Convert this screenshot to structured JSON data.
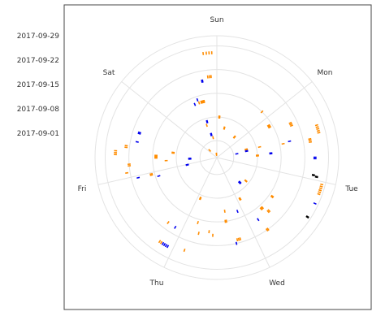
{
  "chart_data": {
    "type": "polar-segments",
    "title": "",
    "xlabel": "",
    "ylabel": "",
    "theta_labels": [
      "Sun",
      "Mon",
      "Tue",
      "Wed",
      "Thu",
      "Fri",
      "Sat"
    ],
    "radial_tick_labels": [
      "2017-09-01",
      "2017-09-08",
      "2017-09-15",
      "2017-09-22",
      "2017-09-29"
    ],
    "radial_range": [
      "2017-08-27",
      "2017-10-02"
    ],
    "grid": true,
    "legend": "none",
    "colors": {
      "orange": "#ff8c00",
      "blue": "#0000ee",
      "black": "#000000",
      "grid": "#e3e3e3",
      "panel_border": "#444444"
    },
    "marks": [
      {
        "day": "Sat",
        "date": "2017-09-27",
        "hour": 20.5,
        "color": "orange"
      },
      {
        "day": "Sat",
        "date": "2017-09-27",
        "hour": 21.3,
        "color": "orange"
      },
      {
        "day": "Sat",
        "date": "2017-09-27",
        "hour": 22.0,
        "color": "orange"
      },
      {
        "day": "Sat",
        "date": "2017-09-27",
        "hour": 22.7,
        "color": "orange"
      },
      {
        "day": "Sat",
        "date": "2017-09-20",
        "hour": 21.0,
        "color": "orange"
      },
      {
        "day": "Sat",
        "date": "2017-09-20",
        "hour": 21.6,
        "color": "orange"
      },
      {
        "day": "Sat",
        "date": "2017-09-20",
        "hour": 22.1,
        "color": "orange"
      },
      {
        "day": "Sat",
        "date": "2017-09-19",
        "hour": 18.8,
        "color": "blue"
      },
      {
        "day": "Sat",
        "date": "2017-09-19",
        "hour": 19.1,
        "color": "blue"
      },
      {
        "day": "Sat",
        "date": "2017-09-13",
        "hour": 13.5,
        "color": "blue"
      },
      {
        "day": "Sat",
        "date": "2017-09-13",
        "hour": 16.6,
        "color": "orange"
      },
      {
        "day": "Sat",
        "date": "2017-09-13",
        "hour": 17.0,
        "color": "orange"
      },
      {
        "day": "Sat",
        "date": "2017-09-13",
        "hour": 17.4,
        "color": "orange"
      },
      {
        "day": "Sat",
        "date": "2017-09-13",
        "hour": 17.8,
        "color": "orange"
      },
      {
        "day": "Sat",
        "date": "2017-09-13",
        "hour": 18.1,
        "color": "orange"
      },
      {
        "day": "Sat",
        "date": "2017-09-13",
        "hour": 15.6,
        "color": "orange"
      },
      {
        "day": "Sat",
        "date": "2017-09-14",
        "hour": 15.3,
        "color": "blue"
      },
      {
        "day": "Sat",
        "date": "2017-09-07",
        "hour": 16.7,
        "color": "blue"
      },
      {
        "day": "Sat",
        "date": "2017-09-07",
        "hour": 17.1,
        "color": "blue"
      },
      {
        "day": "Sat",
        "date": "2017-09-03",
        "hour": 17.2,
        "color": "blue"
      },
      {
        "day": "Sat",
        "date": "2017-09-03",
        "hour": 17.6,
        "color": "blue"
      },
      {
        "day": "Sat",
        "date": "2017-09-03",
        "hour": 18.0,
        "color": "blue"
      },
      {
        "day": "Sat",
        "date": "2017-09-06",
        "hour": 15.9,
        "color": "orange"
      },
      {
        "day": "Sat",
        "date": "2017-09-02",
        "hour": 19.0,
        "color": "orange"
      },
      {
        "day": "Sat",
        "date": "2017-08-30",
        "hour": 3.0,
        "color": "orange"
      },
      {
        "day": "Sat",
        "date": "2017-08-28",
        "hour": 20.8,
        "color": "orange"
      },
      {
        "day": "Sat",
        "date": "2017-08-28",
        "hour": 21.3,
        "color": "orange"
      },
      {
        "day": "Sun",
        "date": "2017-09-04",
        "hour": 18.7,
        "color": "orange"
      },
      {
        "day": "Sun",
        "date": "2017-09-04",
        "hour": 19.2,
        "color": "orange"
      },
      {
        "day": "Sun",
        "date": "2017-09-05",
        "hour": 6.4,
        "color": "orange"
      },
      {
        "day": "Sun",
        "date": "2017-09-05",
        "hour": 6.8,
        "color": "orange"
      },
      {
        "day": "Sun",
        "date": "2017-09-08",
        "hour": 1.4,
        "color": "orange"
      },
      {
        "day": "Sun",
        "date": "2017-09-08",
        "hour": 1.9,
        "color": "orange"
      },
      {
        "day": "Sun",
        "date": "2017-09-15",
        "hour": 20.8,
        "color": "orange"
      },
      {
        "day": "Mon",
        "date": "2017-09-24",
        "hour": 12.7,
        "color": "orange"
      },
      {
        "day": "Mon",
        "date": "2017-09-24",
        "hour": 13.1,
        "color": "orange"
      },
      {
        "day": "Mon",
        "date": "2017-09-24",
        "hour": 13.6,
        "color": "orange"
      },
      {
        "day": "Mon",
        "date": "2017-09-25",
        "hour": 17.9,
        "color": "blue"
      },
      {
        "day": "Mon",
        "date": "2017-09-25",
        "hour": 18.3,
        "color": "blue"
      },
      {
        "day": "Mon",
        "date": "2017-09-25",
        "hour": 22.8,
        "color": "black"
      },
      {
        "day": "Mon",
        "date": "2017-09-26",
        "hour": 23.1,
        "color": "black"
      },
      {
        "day": "Mon",
        "date": "2017-09-16",
        "hour": 12.5,
        "color": "orange"
      },
      {
        "day": "Mon",
        "date": "2017-09-18",
        "hour": 12.1,
        "color": "blue"
      },
      {
        "day": "Mon",
        "date": "2017-09-12",
        "hour": 15.7,
        "color": "blue"
      },
      {
        "day": "Mon",
        "date": "2017-09-12",
        "hour": 16.1,
        "color": "blue"
      },
      {
        "day": "Mon",
        "date": "2017-09-09",
        "hour": 11.5,
        "color": "orange"
      },
      {
        "day": "Mon",
        "date": "2017-09-08",
        "hour": 16.4,
        "color": "orange"
      },
      {
        "day": "Mon",
        "date": "2017-09-08",
        "hour": 16.9,
        "color": "orange"
      },
      {
        "day": "Mon",
        "date": "2017-09-27",
        "hour": 9.6,
        "color": "orange"
      },
      {
        "day": "Mon",
        "date": "2017-09-27",
        "hour": 10.1,
        "color": "orange"
      },
      {
        "day": "Mon",
        "date": "2017-09-27",
        "hour": 10.6,
        "color": "orange"
      },
      {
        "day": "Mon",
        "date": "2017-09-27",
        "hour": 11.1,
        "color": "orange"
      },
      {
        "day": "Mon",
        "date": "2017-09-27",
        "hour": 11.6,
        "color": "orange"
      },
      {
        "day": "Mon",
        "date": "2017-09-20",
        "hour": 6.2,
        "color": "orange"
      },
      {
        "day": "Mon",
        "date": "2017-09-20",
        "hour": 6.7,
        "color": "orange"
      },
      {
        "day": "Mon",
        "date": "2017-09-20",
        "hour": 7.2,
        "color": "orange"
      },
      {
        "day": "Mon",
        "date": "2017-09-14",
        "hour": 3.1,
        "color": "orange"
      },
      {
        "day": "Mon",
        "date": "2017-09-14",
        "hour": 3.6,
        "color": "orange"
      },
      {
        "day": "Mon",
        "date": "2017-09-14",
        "hour": 4.1,
        "color": "orange"
      },
      {
        "day": "Mon",
        "date": "2017-09-05",
        "hour": 10.5,
        "color": "orange"
      },
      {
        "day": "Mon",
        "date": "2017-09-05",
        "hour": 11.0,
        "color": "orange"
      },
      {
        "day": "Mon",
        "date": "2017-09-05",
        "hour": 11.5,
        "color": "orange"
      },
      {
        "day": "Mon",
        "date": "2017-09-05",
        "hour": 12.0,
        "color": "blue"
      },
      {
        "day": "Mon",
        "date": "2017-09-05",
        "hour": 12.4,
        "color": "blue"
      },
      {
        "day": "Mon",
        "date": "2017-09-02",
        "hour": 13.0,
        "color": "blue"
      },
      {
        "day": "Tue",
        "date": "2017-09-28",
        "hour": 0.7,
        "color": "orange"
      },
      {
        "day": "Tue",
        "date": "2017-09-28",
        "hour": 1.2,
        "color": "orange"
      },
      {
        "day": "Tue",
        "date": "2017-09-28",
        "hour": 1.7,
        "color": "orange"
      },
      {
        "day": "Tue",
        "date": "2017-09-28",
        "hour": 2.2,
        "color": "orange"
      },
      {
        "day": "Tue",
        "date": "2017-09-28",
        "hour": 2.7,
        "color": "orange"
      },
      {
        "day": "Tue",
        "date": "2017-09-28",
        "hour": 3.2,
        "color": "orange"
      },
      {
        "day": "Tue",
        "date": "2017-09-28",
        "hour": 5.7,
        "color": "blue"
      },
      {
        "day": "Tue",
        "date": "2017-09-28",
        "hour": 9.5,
        "color": "black"
      },
      {
        "day": "Tue",
        "date": "2017-09-16",
        "hour": 10.2,
        "color": "orange"
      },
      {
        "day": "Tue",
        "date": "2017-09-16",
        "hour": 10.6,
        "color": "orange"
      },
      {
        "day": "Tue",
        "date": "2017-09-16",
        "hour": 16.2,
        "color": "orange"
      },
      {
        "day": "Tue",
        "date": "2017-09-16",
        "hour": 16.6,
        "color": "orange"
      },
      {
        "day": "Tue",
        "date": "2017-09-16",
        "hour": 17.0,
        "color": "orange"
      },
      {
        "day": "Tue",
        "date": "2017-09-18",
        "hour": 15.2,
        "color": "orange"
      },
      {
        "day": "Tue",
        "date": "2017-09-18",
        "hour": 15.7,
        "color": "orange"
      },
      {
        "day": "Tue",
        "date": "2017-09-18",
        "hour": 20.3,
        "color": "blue"
      },
      {
        "day": "Tue",
        "date": "2017-09-22",
        "hour": 19.4,
        "color": "orange"
      },
      {
        "day": "Tue",
        "date": "2017-09-22",
        "hour": 19.8,
        "color": "orange"
      },
      {
        "day": "Tue",
        "date": "2017-09-10",
        "hour": 22.1,
        "color": "orange"
      },
      {
        "day": "Tue",
        "date": "2017-09-10",
        "hour": 22.6,
        "color": "orange"
      },
      {
        "day": "Tue",
        "date": "2017-09-06",
        "hour": 15.7,
        "color": "blue"
      },
      {
        "day": "Tue",
        "date": "2017-09-06",
        "hour": 16.1,
        "color": "blue"
      },
      {
        "day": "Tue",
        "date": "2017-09-06",
        "hour": 16.5,
        "color": "blue"
      },
      {
        "day": "Tue",
        "date": "2017-09-07",
        "hour": 11.9,
        "color": "orange"
      },
      {
        "day": "Tue",
        "date": "2017-09-07",
        "hour": 12.3,
        "color": "orange"
      },
      {
        "day": "Wed",
        "date": "2017-09-21",
        "hour": 4.5,
        "color": "orange"
      },
      {
        "day": "Wed",
        "date": "2017-09-21",
        "hour": 5.0,
        "color": "orange"
      },
      {
        "day": "Wed",
        "date": "2017-09-21",
        "hour": 5.5,
        "color": "orange"
      },
      {
        "day": "Wed",
        "date": "2017-09-22",
        "hour": 6.0,
        "color": "blue"
      },
      {
        "day": "Wed",
        "date": "2017-09-19",
        "hour": 13.4,
        "color": "orange"
      },
      {
        "day": "Wed",
        "date": "2017-09-18",
        "hour": 14.8,
        "color": "orange"
      },
      {
        "day": "Wed",
        "date": "2017-09-15",
        "hour": 8.0,
        "color": "orange"
      },
      {
        "day": "Wed",
        "date": "2017-09-15",
        "hour": 8.5,
        "color": "orange"
      },
      {
        "day": "Wed",
        "date": "2017-09-13",
        "hour": 2.2,
        "color": "blue"
      },
      {
        "day": "Wed",
        "date": "2017-09-12",
        "hour": 8.1,
        "color": "orange"
      },
      {
        "day": "Wed",
        "date": "2017-09-09",
        "hour": 22.1,
        "color": "orange"
      },
      {
        "day": "Wed",
        "date": "2017-09-09",
        "hour": 22.5,
        "color": "orange"
      },
      {
        "day": "Wed",
        "date": "2017-09-19",
        "hour": 18.3,
        "color": "orange"
      },
      {
        "day": "Wed",
        "date": "2017-09-16",
        "hour": 19.6,
        "color": "orange"
      },
      {
        "day": "Wed",
        "date": "2017-09-25",
        "hour": 21.0,
        "color": "orange"
      },
      {
        "day": "Thu",
        "date": "2017-09-26",
        "hour": 1.5,
        "color": "blue"
      },
      {
        "day": "Thu",
        "date": "2017-09-26",
        "hour": 2.0,
        "color": "blue"
      },
      {
        "day": "Thu",
        "date": "2017-09-26",
        "hour": 2.5,
        "color": "blue"
      },
      {
        "day": "Thu",
        "date": "2017-09-26",
        "hour": 3.0,
        "color": "blue"
      },
      {
        "day": "Thu",
        "date": "2017-09-26",
        "hour": 3.5,
        "color": "orange"
      },
      {
        "day": "Thu",
        "date": "2017-09-26",
        "hour": 4.0,
        "color": "orange"
      },
      {
        "day": "Thu",
        "date": "2017-09-20",
        "hour": 2.4,
        "color": "blue"
      },
      {
        "day": "Thu",
        "date": "2017-09-20",
        "hour": 23.3,
        "color": "blue"
      },
      {
        "day": "Thu",
        "date": "2017-09-16",
        "hour": 23.0,
        "color": "orange"
      },
      {
        "day": "Thu",
        "date": "2017-09-16",
        "hour": 23.5,
        "color": "orange"
      },
      {
        "day": "Thu",
        "date": "2017-09-14",
        "hour": 21.8,
        "color": "blue"
      },
      {
        "day": "Thu",
        "date": "2017-09-05",
        "hour": 23.4,
        "color": "blue"
      },
      {
        "day": "Thu",
        "date": "2017-09-05",
        "hour": 23.8,
        "color": "blue"
      },
      {
        "day": "Thu",
        "date": "2017-09-20",
        "hour": 5.2,
        "color": "orange"
      },
      {
        "day": "Fri",
        "date": "2017-09-22",
        "hour": 3.5,
        "color": "orange"
      },
      {
        "day": "Fri",
        "date": "2017-09-22",
        "hour": 4.0,
        "color": "orange"
      },
      {
        "day": "Fri",
        "date": "2017-09-23",
        "hour": 1.5,
        "color": "orange"
      },
      {
        "day": "Fri",
        "date": "2017-09-26",
        "hour": 6.8,
        "color": "orange"
      },
      {
        "day": "Fri",
        "date": "2017-09-26",
        "hour": 7.3,
        "color": "orange"
      },
      {
        "day": "Fri",
        "date": "2017-09-26",
        "hour": 7.8,
        "color": "orange"
      },
      {
        "day": "Fri",
        "date": "2017-09-23",
        "hour": 9.0,
        "color": "orange"
      },
      {
        "day": "Fri",
        "date": "2017-09-23",
        "hour": 9.5,
        "color": "orange"
      },
      {
        "day": "Fri",
        "date": "2017-09-20",
        "hour": 11.2,
        "color": "blue"
      },
      {
        "day": "Fri",
        "date": "2017-09-20",
        "hour": 14.0,
        "color": "blue"
      },
      {
        "day": "Fri",
        "date": "2017-09-20",
        "hour": 14.4,
        "color": "blue"
      },
      {
        "day": "Fri",
        "date": "2017-09-14",
        "hour": 5.8,
        "color": "orange"
      },
      {
        "day": "Fri",
        "date": "2017-09-14",
        "hour": 6.2,
        "color": "orange"
      },
      {
        "day": "Fri",
        "date": "2017-09-14",
        "hour": 6.6,
        "color": "orange"
      },
      {
        "day": "Fri",
        "date": "2017-09-14",
        "hour": 7.0,
        "color": "orange"
      },
      {
        "day": "Fri",
        "date": "2017-09-11",
        "hour": 4.4,
        "color": "orange"
      },
      {
        "day": "Fri",
        "date": "2017-09-09",
        "hour": 8.7,
        "color": "orange"
      },
      {
        "day": "Fri",
        "date": "2017-09-09",
        "hour": 9.2,
        "color": "orange"
      },
      {
        "day": "Fri",
        "date": "2017-09-04",
        "hour": 4.5,
        "color": "blue"
      },
      {
        "day": "Fri",
        "date": "2017-09-04",
        "hour": 4.9,
        "color": "blue"
      },
      {
        "day": "Fri",
        "date": "2017-09-04",
        "hour": 5.3,
        "color": "blue"
      }
    ]
  }
}
